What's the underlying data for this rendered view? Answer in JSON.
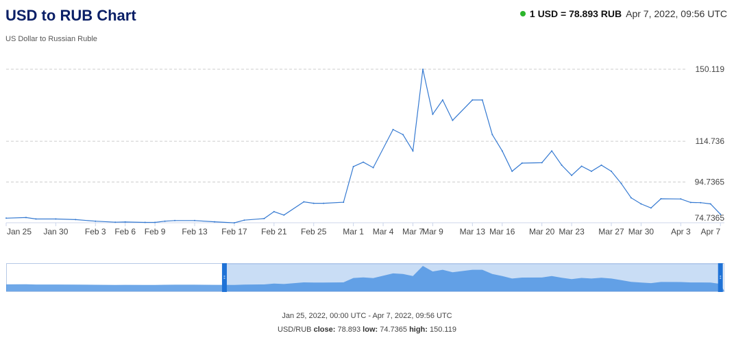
{
  "header": {
    "title": "USD to RUB Chart",
    "subtitle": "US Dollar to Russian Ruble",
    "rate": "1 USD = 78.893 RUB",
    "timestamp": "Apr 7, 2022, 09:56 UTC",
    "status_color": "#2bb52b"
  },
  "footer": {
    "range": "Jan 25, 2022, 00:00 UTC - Apr 7, 2022, 09:56 UTC",
    "pair": "USD/RUB",
    "close_label": "close:",
    "close_value": "78.893",
    "low_label": "low:",
    "low_value": "74.7365",
    "high_label": "high:",
    "high_value": "150.119"
  },
  "colors": {
    "line": "#3479d1",
    "grid": "#cccccc",
    "nav_fill": "#c9ddf5",
    "nav_area": "#3f8be0",
    "handle": "#1f72d6"
  },
  "chart_data": {
    "type": "line",
    "series": [
      {
        "x": [
          "Jan 25",
          "Jan 27",
          "Jan 28",
          "Jan 30",
          "Feb 1",
          "Feb 3",
          "Feb 5",
          "Feb 6",
          "Feb 8",
          "Feb 9",
          "Feb 10",
          "Feb 11",
          "Feb 13",
          "Feb 15",
          "Feb 17",
          "Feb 18",
          "Feb 20",
          "Feb 21",
          "Feb 22",
          "Feb 24",
          "Feb 25",
          "Feb 26",
          "Feb 28",
          "Mar 1",
          "Mar 2",
          "Mar 3",
          "Mar 5",
          "Mar 6",
          "Mar 7",
          "Mar 8",
          "Mar 9",
          "Mar 10",
          "Mar 11",
          "Mar 13",
          "Mar 14",
          "Mar 15",
          "Mar 16",
          "Mar 17",
          "Mar 18",
          "Mar 20",
          "Mar 21",
          "Mar 22",
          "Mar 23",
          "Mar 24",
          "Mar 25",
          "Mar 26",
          "Mar 27",
          "Mar 28",
          "Mar 29",
          "Mar 30",
          "Mar 31",
          "Apr 1",
          "Apr 3",
          "Apr 4",
          "Apr 5",
          "Apr 6",
          "Apr 7"
        ],
        "y": [
          77.0,
          77.3,
          76.6,
          76.6,
          76.3,
          75.5,
          75.0,
          75.1,
          74.9,
          74.9,
          75.5,
          75.8,
          75.8,
          75.2,
          74.7,
          76.0,
          76.8,
          80.2,
          78.5,
          85.0,
          84.3,
          84.3,
          84.8,
          102.3,
          104.5,
          101.8,
          120.5,
          118.0,
          110.0,
          150.1,
          128.0,
          135.0,
          125.0,
          135.0,
          135.0,
          118.0,
          110.0,
          100.0,
          104.0,
          104.2,
          110.0,
          103.0,
          98.0,
          102.5,
          100.0,
          103.0,
          100.0,
          94.0,
          87.0,
          84.0,
          82.0,
          86.5,
          86.4,
          84.7,
          84.6,
          84.0,
          78.9
        ]
      }
    ],
    "x_ticks": [
      "Jan 25",
      "Jan 30",
      "Feb 3",
      "Feb 6",
      "Feb 9",
      "Feb 13",
      "Feb 17",
      "Feb 21",
      "Feb 25",
      "Mar 1",
      "Mar 4",
      "Mar 7",
      "Mar 9",
      "Mar 13",
      "Mar 16",
      "Mar 20",
      "Mar 23",
      "Mar 27",
      "Mar 30",
      "Apr 3",
      "Apr 7"
    ],
    "y_ticks": [
      "74.7365",
      "94.7365",
      "114.736",
      "150.119"
    ],
    "y_tick_values": [
      74.7365,
      94.7365,
      114.736,
      150.119
    ],
    "ylim": [
      74.7365,
      150.119
    ],
    "grid": true,
    "navigator": {
      "selection": [
        "Feb 16",
        "Apr 7"
      ]
    }
  }
}
